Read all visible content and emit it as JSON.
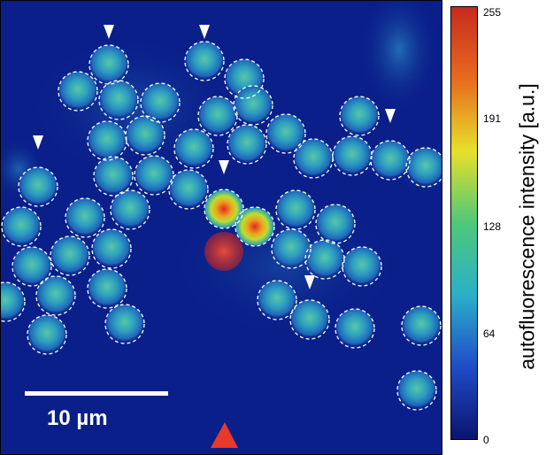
{
  "scale_bar": {
    "label": "10 µm"
  },
  "colorbar": {
    "title": "autofluorescence intensity [a.u.]",
    "ticks": [
      "255",
      "191",
      "128",
      "64",
      "0"
    ],
    "colors": [
      "#0b1470",
      "#1f4cc8",
      "#2ab0c8",
      "#4ec878",
      "#e8e02a",
      "#e86a1e",
      "#c82a1e"
    ]
  },
  "colors": {
    "background": "#0a1f8a",
    "cell": "#2ea0b8",
    "hot_cell": "#e0452a",
    "marker_target": "#e8392a",
    "arrowhead": "#ffffff"
  }
}
